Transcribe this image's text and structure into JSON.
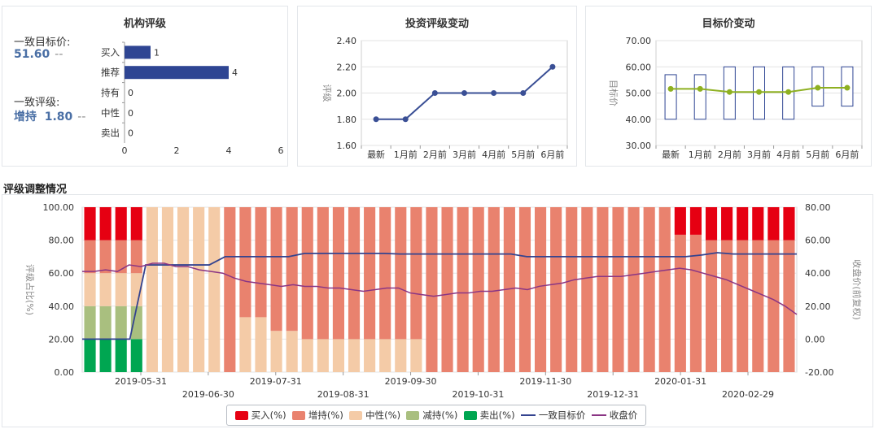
{
  "institution_panel": {
    "title": "机构评级",
    "target_label": "一致目标价:",
    "target_value": "51.60",
    "target_dash": "--",
    "rating_label": "一致评级:",
    "rating_value": "增持  1.80",
    "rating_dash": "--"
  },
  "rating_change_panel": {
    "title": "投资评级变动"
  },
  "target_change_panel": {
    "title": "目标价变动"
  },
  "section_title": "评级调整情况",
  "legend": {
    "buy": "买入(%)",
    "overweight": "增持(%)",
    "neutral": "中性(%)",
    "underweight": "减持(%)",
    "sell": "卖出(%)",
    "target": "一致目标价",
    "close": "收盘价"
  },
  "colors": {
    "buy": "#e60012",
    "overweight": "#e9826e",
    "neutral": "#f4cba7",
    "underweight": "#a9bf7f",
    "sell": "#00a651",
    "target_line": "#34438f",
    "close_line": "#8a3584",
    "bar_blue": "#2e4593",
    "target_dot": "#8eb021"
  },
  "chart_data": [
    {
      "type": "bar",
      "orientation": "horizontal",
      "categories": [
        "买入",
        "推荐",
        "持有",
        "中性",
        "卖出"
      ],
      "values": [
        1,
        4,
        0,
        0,
        0
      ],
      "xlim": [
        0,
        6
      ],
      "xticks": [
        "0",
        "2",
        "4",
        "6"
      ]
    },
    {
      "type": "line",
      "categories": [
        "最新",
        "1月前",
        "2月前",
        "3月前",
        "4月前",
        "5月前",
        "6月前"
      ],
      "values": [
        1.8,
        1.8,
        2.0,
        2.0,
        2.0,
        2.0,
        2.2
      ],
      "ylabel": "评级",
      "ylim": [
        1.6,
        2.4
      ],
      "yticks": [
        "1.60",
        "1.80",
        "2.00",
        "2.20",
        "2.40"
      ]
    },
    {
      "type": "line",
      "categories": [
        "最新",
        "1月前",
        "2月前",
        "3月前",
        "4月前",
        "5月前",
        "6月前"
      ],
      "values": [
        51.6,
        51.6,
        50.4,
        50.4,
        50.4,
        52.0,
        52.0
      ],
      "range_low": [
        40,
        40,
        40,
        40,
        40,
        45,
        45
      ],
      "range_high": [
        57,
        57,
        60,
        60,
        60,
        60,
        60
      ],
      "ylabel": "目标价",
      "ylim": [
        30,
        70
      ],
      "yticks": [
        "30.00",
        "40.00",
        "50.00",
        "60.00",
        "70.00"
      ]
    },
    {
      "type": "bar",
      "stacked": true,
      "ylabel_left": "评级占比(%)",
      "ylabel_right": "收盘价(前复权)",
      "ylim_left": [
        0,
        100
      ],
      "ylim_right": [
        -20,
        80
      ],
      "yticks_left": [
        "0.00",
        "20.00",
        "40.00",
        "60.00",
        "80.00",
        "100.00"
      ],
      "yticks_right": [
        "-20.00",
        "0.00",
        "20.00",
        "40.00",
        "60.00",
        "80.00"
      ],
      "xticks_upper": [
        "2019-05-31",
        "2019-07-31",
        "2019-09-30",
        "2019-11-30",
        "2020-01-31"
      ],
      "xticks_lower": [
        "2019-06-30",
        "2019-08-31",
        "2019-10-31",
        "2019-12-31",
        "2020-02-29"
      ],
      "bars": [
        {
          "buy": 20,
          "overweight": 20,
          "neutral": 20,
          "underweight": 20,
          "sell": 20
        },
        {
          "buy": 20,
          "overweight": 20,
          "neutral": 20,
          "underweight": 20,
          "sell": 20
        },
        {
          "buy": 20,
          "overweight": 20,
          "neutral": 20,
          "underweight": 20,
          "sell": 20
        },
        {
          "buy": 20,
          "overweight": 20,
          "neutral": 20,
          "underweight": 20,
          "sell": 20
        },
        {
          "buy": 0,
          "overweight": 0,
          "neutral": 100,
          "underweight": 0,
          "sell": 0
        },
        {
          "buy": 0,
          "overweight": 0,
          "neutral": 100,
          "underweight": 0,
          "sell": 0
        },
        {
          "buy": 0,
          "overweight": 0,
          "neutral": 100,
          "underweight": 0,
          "sell": 0
        },
        {
          "buy": 0,
          "overweight": 0,
          "neutral": 100,
          "underweight": 0,
          "sell": 0
        },
        {
          "buy": 0,
          "overweight": 0,
          "neutral": 100,
          "underweight": 0,
          "sell": 0
        },
        {
          "buy": 0,
          "overweight": 100,
          "neutral": 0,
          "underweight": 0,
          "sell": 0
        },
        {
          "buy": 0,
          "overweight": 66.7,
          "neutral": 33.3,
          "underweight": 0,
          "sell": 0
        },
        {
          "buy": 0,
          "overweight": 66.7,
          "neutral": 33.3,
          "underweight": 0,
          "sell": 0
        },
        {
          "buy": 0,
          "overweight": 75,
          "neutral": 25,
          "underweight": 0,
          "sell": 0
        },
        {
          "buy": 0,
          "overweight": 75,
          "neutral": 25,
          "underweight": 0,
          "sell": 0
        },
        {
          "buy": 0,
          "overweight": 80,
          "neutral": 20,
          "underweight": 0,
          "sell": 0
        },
        {
          "buy": 0,
          "overweight": 80,
          "neutral": 20,
          "underweight": 0,
          "sell": 0
        },
        {
          "buy": 0,
          "overweight": 80,
          "neutral": 20,
          "underweight": 0,
          "sell": 0
        },
        {
          "buy": 0,
          "overweight": 80,
          "neutral": 20,
          "underweight": 0,
          "sell": 0
        },
        {
          "buy": 0,
          "overweight": 80,
          "neutral": 20,
          "underweight": 0,
          "sell": 0
        },
        {
          "buy": 0,
          "overweight": 80,
          "neutral": 20,
          "underweight": 0,
          "sell": 0
        },
        {
          "buy": 0,
          "overweight": 80,
          "neutral": 20,
          "underweight": 0,
          "sell": 0
        },
        {
          "buy": 0,
          "overweight": 80,
          "neutral": 20,
          "underweight": 0,
          "sell": 0
        },
        {
          "buy": 0,
          "overweight": 100,
          "neutral": 0,
          "underweight": 0,
          "sell": 0
        },
        {
          "buy": 0,
          "overweight": 100,
          "neutral": 0,
          "underweight": 0,
          "sell": 0
        },
        {
          "buy": 0,
          "overweight": 100,
          "neutral": 0,
          "underweight": 0,
          "sell": 0
        },
        {
          "buy": 0,
          "overweight": 100,
          "neutral": 0,
          "underweight": 0,
          "sell": 0
        },
        {
          "buy": 0,
          "overweight": 100,
          "neutral": 0,
          "underweight": 0,
          "sell": 0
        },
        {
          "buy": 0,
          "overweight": 100,
          "neutral": 0,
          "underweight": 0,
          "sell": 0
        },
        {
          "buy": 0,
          "overweight": 100,
          "neutral": 0,
          "underweight": 0,
          "sell": 0
        },
        {
          "buy": 0,
          "overweight": 100,
          "neutral": 0,
          "underweight": 0,
          "sell": 0
        },
        {
          "buy": 0,
          "overweight": 100,
          "neutral": 0,
          "underweight": 0,
          "sell": 0
        },
        {
          "buy": 0,
          "overweight": 100,
          "neutral": 0,
          "underweight": 0,
          "sell": 0
        },
        {
          "buy": 0,
          "overweight": 100,
          "neutral": 0,
          "underweight": 0,
          "sell": 0
        },
        {
          "buy": 0,
          "overweight": 100,
          "neutral": 0,
          "underweight": 0,
          "sell": 0
        },
        {
          "buy": 0,
          "overweight": 100,
          "neutral": 0,
          "underweight": 0,
          "sell": 0
        },
        {
          "buy": 0,
          "overweight": 100,
          "neutral": 0,
          "underweight": 0,
          "sell": 0
        },
        {
          "buy": 0,
          "overweight": 100,
          "neutral": 0,
          "underweight": 0,
          "sell": 0
        },
        {
          "buy": 0,
          "overweight": 100,
          "neutral": 0,
          "underweight": 0,
          "sell": 0
        },
        {
          "buy": 16.7,
          "overweight": 83.3,
          "neutral": 0,
          "underweight": 0,
          "sell": 0
        },
        {
          "buy": 16.7,
          "overweight": 83.3,
          "neutral": 0,
          "underweight": 0,
          "sell": 0
        },
        {
          "buy": 20,
          "overweight": 80,
          "neutral": 0,
          "underweight": 0,
          "sell": 0
        },
        {
          "buy": 20,
          "overweight": 80,
          "neutral": 0,
          "underweight": 0,
          "sell": 0
        },
        {
          "buy": 20,
          "overweight": 80,
          "neutral": 0,
          "underweight": 0,
          "sell": 0
        },
        {
          "buy": 20,
          "overweight": 80,
          "neutral": 0,
          "underweight": 0,
          "sell": 0
        },
        {
          "buy": 20,
          "overweight": 80,
          "neutral": 0,
          "underweight": 0,
          "sell": 0
        },
        {
          "buy": 20,
          "overweight": 80,
          "neutral": 0,
          "underweight": 0,
          "sell": 0
        }
      ],
      "target_price": [
        0,
        0,
        0,
        0,
        45,
        45,
        45,
        45,
        45,
        50,
        50,
        50,
        50,
        50,
        52,
        52,
        52,
        52,
        52,
        52,
        51.6,
        51.6,
        51.6,
        51.6,
        51.6,
        51.6,
        51.6,
        51.6,
        50,
        50,
        50,
        50,
        50,
        50,
        50,
        50,
        50,
        50,
        50,
        51,
        52.4,
        51.6,
        51.6,
        51.6,
        51.6,
        51.6
      ],
      "close_price": [
        41,
        41,
        42,
        41,
        45,
        44,
        46,
        46,
        44,
        44,
        42,
        41,
        40,
        37,
        35,
        34,
        33,
        32,
        33,
        32,
        32,
        31,
        31,
        30,
        29,
        30,
        31,
        31,
        28,
        27,
        26,
        27,
        28,
        28,
        29,
        29,
        30,
        31,
        30,
        32,
        33,
        34,
        36,
        37,
        38,
        38,
        38,
        39,
        40,
        41,
        42,
        43,
        42,
        40,
        38,
        36,
        33,
        30,
        27,
        24,
        20,
        15
      ]
    }
  ]
}
